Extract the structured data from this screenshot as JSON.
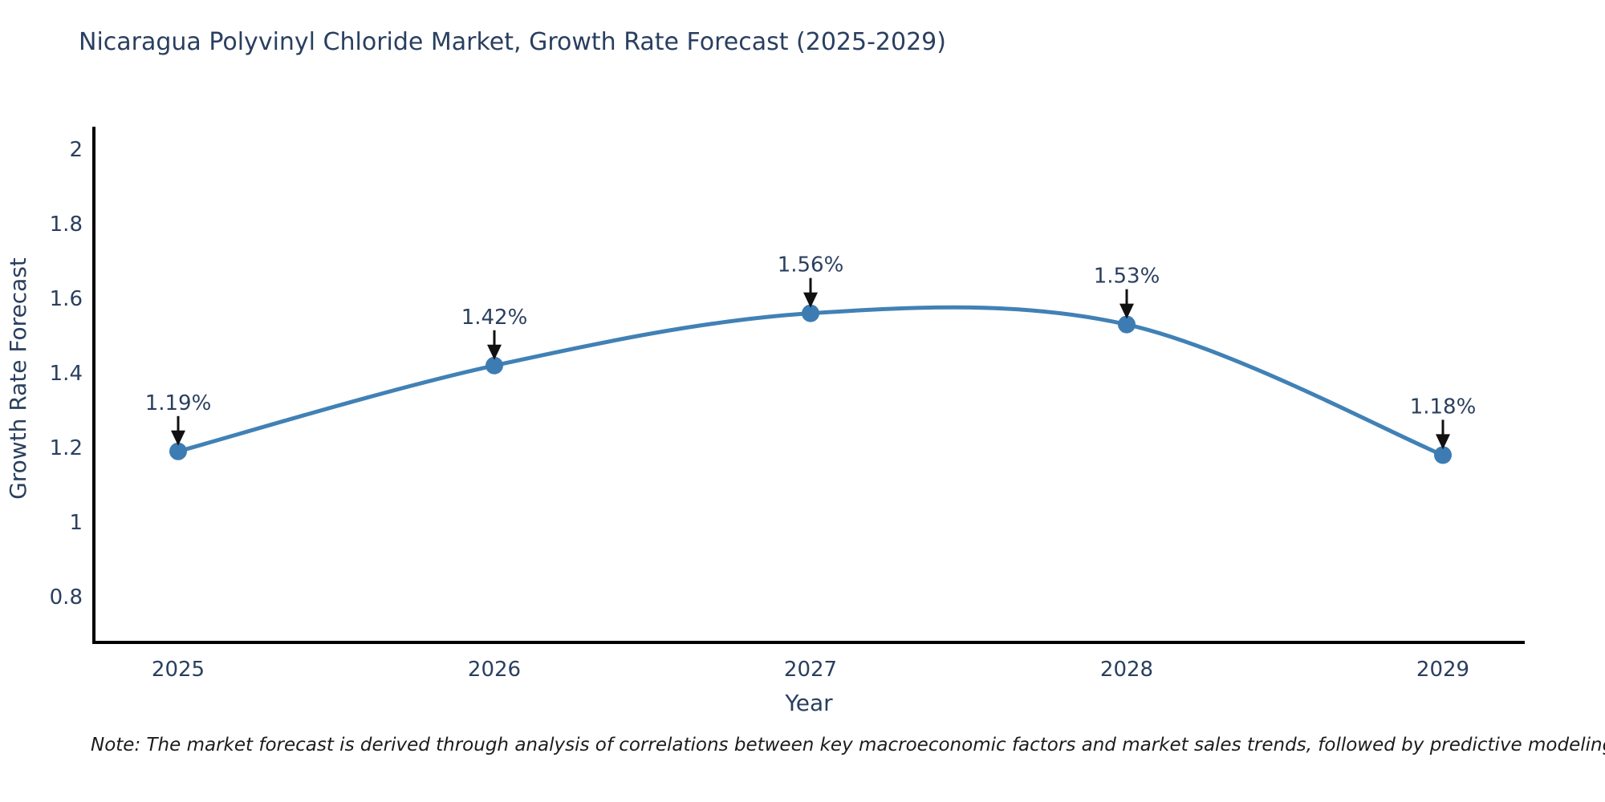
{
  "page": {
    "footnote": "Note: The market forecast is derived through analysis of correlations between key macroeconomic factors and market sales trends, followed by predictive modeling to project future sales"
  },
  "chart_data": {
    "type": "line",
    "title": "Nicaragua Polyvinyl Chloride Market, Growth Rate Forecast (2025-2029)",
    "x": [
      2025,
      2026,
      2027,
      2028,
      2029
    ],
    "series": [
      {
        "name": "Growth Rate Forecast",
        "values": [
          1.19,
          1.42,
          1.56,
          1.53,
          1.18
        ]
      }
    ],
    "point_labels": [
      "1.19%",
      "1.42%",
      "1.56%",
      "1.53%",
      "1.18%"
    ],
    "xlabel": "Year",
    "ylabel": "Growth Rate Forecast",
    "yticks": [
      0.8,
      1,
      1.2,
      1.4,
      1.6,
      1.8,
      2
    ],
    "ylim": [
      0.678,
      2.06
    ],
    "line_shape": "spline",
    "grid": false,
    "legend_position": "none",
    "annotations_have_arrows": true,
    "colors": {
      "line": "#4181b5",
      "marker": "#3c7cb2",
      "axis": "#000000",
      "tick_text": "#2a3f5f",
      "annotation_text": "#2a3f5f",
      "arrow": "#111111",
      "background": "#ffffff"
    }
  }
}
